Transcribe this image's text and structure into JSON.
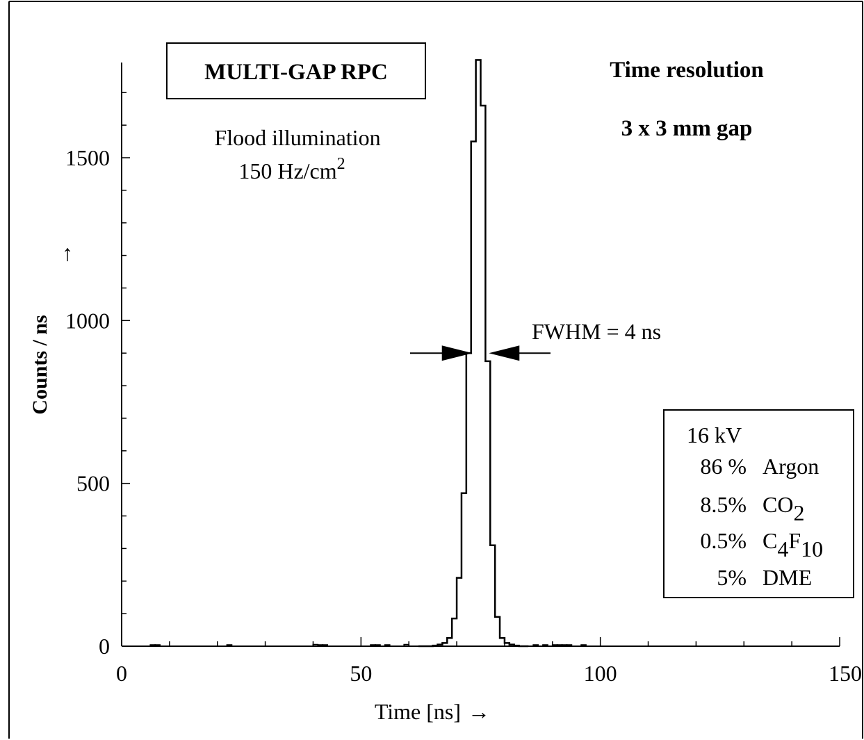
{
  "chart_data": {
    "type": "histogram",
    "title": "MULTI-GAP RPC",
    "corner_title": "Time resolution",
    "gap_label": "3 x 3 mm gap",
    "illumination": {
      "line1": "Flood illumination",
      "line2": "150 Hz/cm",
      "line2_sup": "2"
    },
    "fwhm_label": "FWHM = 4 ns",
    "fwhm_level": 900,
    "fwhm_left": 73,
    "fwhm_right": 77,
    "xlabel": "Time [ns]",
    "xlabel_arrow": "→",
    "ylabel": "Counts / ns",
    "ylabel_arrow": "↑",
    "xlim": [
      0,
      150
    ],
    "ylim": [
      0,
      1800
    ],
    "x_ticks": [
      0,
      50,
      100,
      150
    ],
    "x_tick_labels": [
      "0",
      "50",
      "100",
      "150"
    ],
    "y_ticks": [
      0,
      500,
      1000,
      1500
    ],
    "y_tick_labels": [
      "0",
      "500",
      "1000",
      "1500"
    ],
    "bins": {
      "x": [
        62,
        63,
        64,
        65,
        66,
        67,
        68,
        69,
        70,
        71,
        72,
        73,
        74,
        75,
        76,
        77,
        78,
        79,
        80,
        81,
        82,
        83,
        84
      ],
      "counts": [
        0,
        0,
        0,
        2,
        5,
        10,
        25,
        85,
        210,
        470,
        900,
        1550,
        1800,
        1660,
        875,
        310,
        90,
        25,
        10,
        5,
        2,
        0,
        0
      ]
    },
    "noise": [
      [
        6,
        4
      ],
      [
        7,
        4
      ],
      [
        22,
        4
      ],
      [
        40,
        5
      ],
      [
        41,
        4
      ],
      [
        42,
        4
      ],
      [
        52,
        4
      ],
      [
        53,
        4
      ],
      [
        55,
        4
      ],
      [
        59,
        5
      ],
      [
        86,
        4
      ],
      [
        88,
        4
      ],
      [
        90,
        4
      ],
      [
        91,
        4
      ],
      [
        92,
        4
      ],
      [
        93,
        4
      ],
      [
        96,
        4
      ]
    ],
    "conditions": {
      "voltage": "16 kV",
      "rows": [
        {
          "pct": "86 %",
          "gas": "Argon",
          "sub1": "",
          "gas2": "",
          "sub2": ""
        },
        {
          "pct": "8.5%",
          "gas": "CO",
          "sub1": "2",
          "gas2": "",
          "sub2": ""
        },
        {
          "pct": "0.5%",
          "gas": "C",
          "sub1": "4",
          "gas2": "F",
          "sub2": "10"
        },
        {
          "pct": "5%",
          "gas": "DME",
          "sub1": "",
          "gas2": "",
          "sub2": ""
        }
      ]
    }
  }
}
